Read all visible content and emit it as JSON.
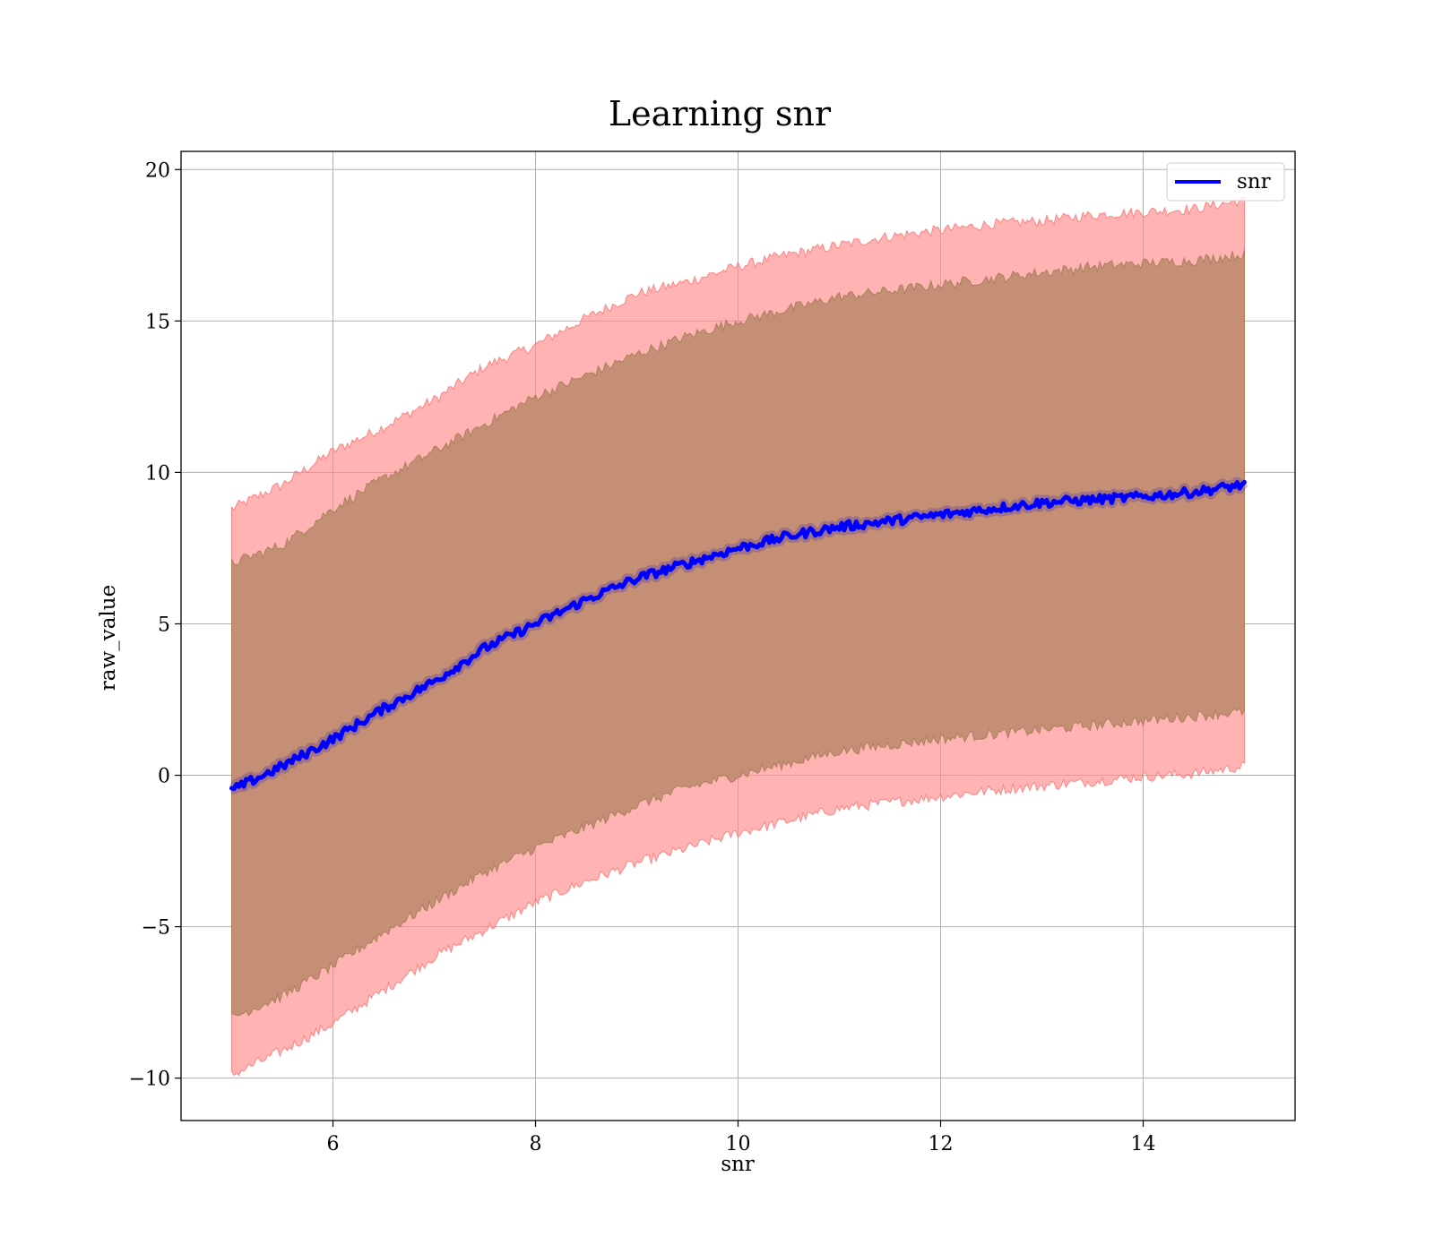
{
  "chart_data": {
    "type": "line",
    "title": "Learning snr",
    "xlabel": "snr",
    "ylabel": "raw_value",
    "xlim": [
      4.5,
      15.5
    ],
    "ylim": [
      -11.4,
      20.6
    ],
    "grid": true,
    "legend": {
      "entries": [
        "snr"
      ],
      "placement": "top-right"
    },
    "x_ticks": [
      {
        "value": 6,
        "label": "6"
      },
      {
        "value": 8,
        "label": "8"
      },
      {
        "value": 10,
        "label": "10"
      },
      {
        "value": 12,
        "label": "12"
      },
      {
        "value": 14,
        "label": "14"
      }
    ],
    "y_ticks": [
      {
        "value": -10,
        "label": "−10"
      },
      {
        "value": -5,
        "label": "−5"
      },
      {
        "value": 0,
        "label": "0"
      },
      {
        "value": 5,
        "label": "5"
      },
      {
        "value": 10,
        "label": "10"
      },
      {
        "value": 15,
        "label": "15"
      },
      {
        "value": 20,
        "label": "20"
      }
    ],
    "x": [
      5.0,
      5.5,
      6.0,
      6.5,
      7.0,
      7.5,
      8.0,
      8.5,
      9.0,
      9.5,
      10.0,
      10.5,
      11.0,
      11.5,
      12.0,
      12.5,
      13.0,
      13.5,
      14.0,
      14.5,
      15.0
    ],
    "series": [
      {
        "name": "snr",
        "color": "#0000ff",
        "values": [
          -0.5,
          0.3,
          1.2,
          2.2,
          3.1,
          4.2,
          5.0,
          5.8,
          6.5,
          7.0,
          7.5,
          7.9,
          8.2,
          8.4,
          8.6,
          8.8,
          9.0,
          9.1,
          9.2,
          9.35,
          9.6
        ]
      }
    ],
    "bands": [
      {
        "role": "outer",
        "color": "#ff8a8a",
        "lower": [
          -9.9,
          -9.1,
          -8.2,
          -7.1,
          -6.0,
          -5.1,
          -4.2,
          -3.5,
          -2.9,
          -2.4,
          -1.9,
          -1.5,
          -1.1,
          -0.9,
          -0.7,
          -0.5,
          -0.35,
          -0.2,
          -0.05,
          0.05,
          0.3
        ],
        "upper": [
          8.8,
          9.6,
          10.7,
          11.5,
          12.4,
          13.5,
          14.2,
          15.1,
          15.9,
          16.3,
          16.8,
          17.2,
          17.5,
          17.8,
          18.0,
          18.2,
          18.3,
          18.5,
          18.6,
          18.7,
          19.0
        ]
      },
      {
        "role": "inner",
        "color": "#bf8b6f",
        "lower": [
          -8.0,
          -7.3,
          -6.3,
          -5.2,
          -4.2,
          -3.2,
          -2.4,
          -1.7,
          -1.0,
          -0.4,
          0.0,
          0.4,
          0.8,
          1.0,
          1.2,
          1.35,
          1.5,
          1.65,
          1.8,
          1.95,
          2.1
        ],
        "upper": [
          7.0,
          7.6,
          8.8,
          9.8,
          10.7,
          11.6,
          12.5,
          13.2,
          13.9,
          14.5,
          15.0,
          15.4,
          15.8,
          16.0,
          16.2,
          16.4,
          16.6,
          16.8,
          16.9,
          17.0,
          17.2
        ]
      }
    ]
  }
}
